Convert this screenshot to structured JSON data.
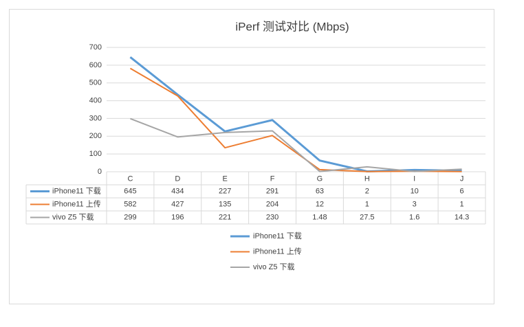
{
  "chart_data": {
    "type": "line",
    "title": "iPerf 测试对比 (Mbps)",
    "categories": [
      "C",
      "D",
      "E",
      "F",
      "G",
      "H",
      "I",
      "J"
    ],
    "series": [
      {
        "name": "iPhone11 下载",
        "color": "#5b9bd5",
        "values": [
          645,
          434,
          227,
          291,
          63,
          2,
          10,
          6
        ]
      },
      {
        "name": "iPhone11 上传",
        "color": "#ed7d31",
        "values": [
          582,
          427,
          135,
          204,
          12,
          1,
          3,
          1
        ]
      },
      {
        "name": "vivo Z5 下载",
        "color": "#a5a5a5",
        "values": [
          299,
          196,
          221,
          230,
          1.48,
          27.5,
          1.6,
          14.3
        ]
      }
    ],
    "ylim": [
      0,
      700
    ],
    "yticks": [
      0,
      100,
      200,
      300,
      400,
      500,
      600,
      700
    ],
    "grid": true,
    "legend": "bottom",
    "data_table": true
  }
}
